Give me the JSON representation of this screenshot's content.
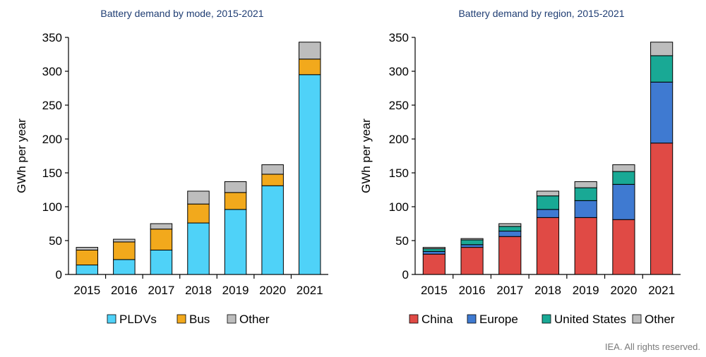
{
  "credit": "IEA. All rights reserved.",
  "colors": {
    "title": "#1f3d73",
    "pldv": "#4fd2f8",
    "bus": "#f2a91c",
    "other": "#bdbdbd",
    "china": "#e04a45",
    "europe": "#3f7ad1",
    "us": "#19a995"
  },
  "chart_data": [
    {
      "type": "bar",
      "stacked": true,
      "title": "Battery demand by mode, 2015-2021",
      "xlabel": "",
      "ylabel": "GWh per year",
      "ylim": [
        0,
        350
      ],
      "yticks": [
        0,
        50,
        100,
        150,
        200,
        250,
        300,
        350
      ],
      "categories": [
        "2015",
        "2016",
        "2017",
        "2018",
        "2019",
        "2020",
        "2021"
      ],
      "legend_position": "bottom",
      "series": [
        {
          "name": "PLDVs",
          "color": "#4fd2f8",
          "values": [
            14,
            22,
            36,
            76,
            96,
            131,
            295
          ]
        },
        {
          "name": "Bus",
          "color": "#f2a91c",
          "values": [
            22,
            26,
            31,
            28,
            25,
            17,
            23
          ]
        },
        {
          "name": "Other",
          "color": "#bdbdbd",
          "values": [
            4,
            4,
            8,
            19,
            16,
            14,
            25
          ]
        }
      ]
    },
    {
      "type": "bar",
      "stacked": true,
      "title": "Battery demand by region, 2015-2021",
      "xlabel": "",
      "ylabel": "GWh per year",
      "ylim": [
        0,
        350
      ],
      "yticks": [
        0,
        50,
        100,
        150,
        200,
        250,
        300,
        350
      ],
      "categories": [
        "2015",
        "2016",
        "2017",
        "2018",
        "2019",
        "2020",
        "2021"
      ],
      "legend_position": "bottom",
      "series": [
        {
          "name": "China",
          "color": "#e04a45",
          "values": [
            30,
            40,
            56,
            84,
            84,
            81,
            194
          ]
        },
        {
          "name": "Europe",
          "color": "#3f7ad1",
          "values": [
            4,
            4,
            8,
            12,
            25,
            52,
            90
          ]
        },
        {
          "name": "United States",
          "color": "#19a995",
          "values": [
            4,
            7,
            7,
            20,
            19,
            19,
            39
          ]
        },
        {
          "name": "Other",
          "color": "#bdbdbd",
          "values": [
            2,
            2,
            4,
            7,
            9,
            10,
            20
          ]
        }
      ]
    }
  ]
}
